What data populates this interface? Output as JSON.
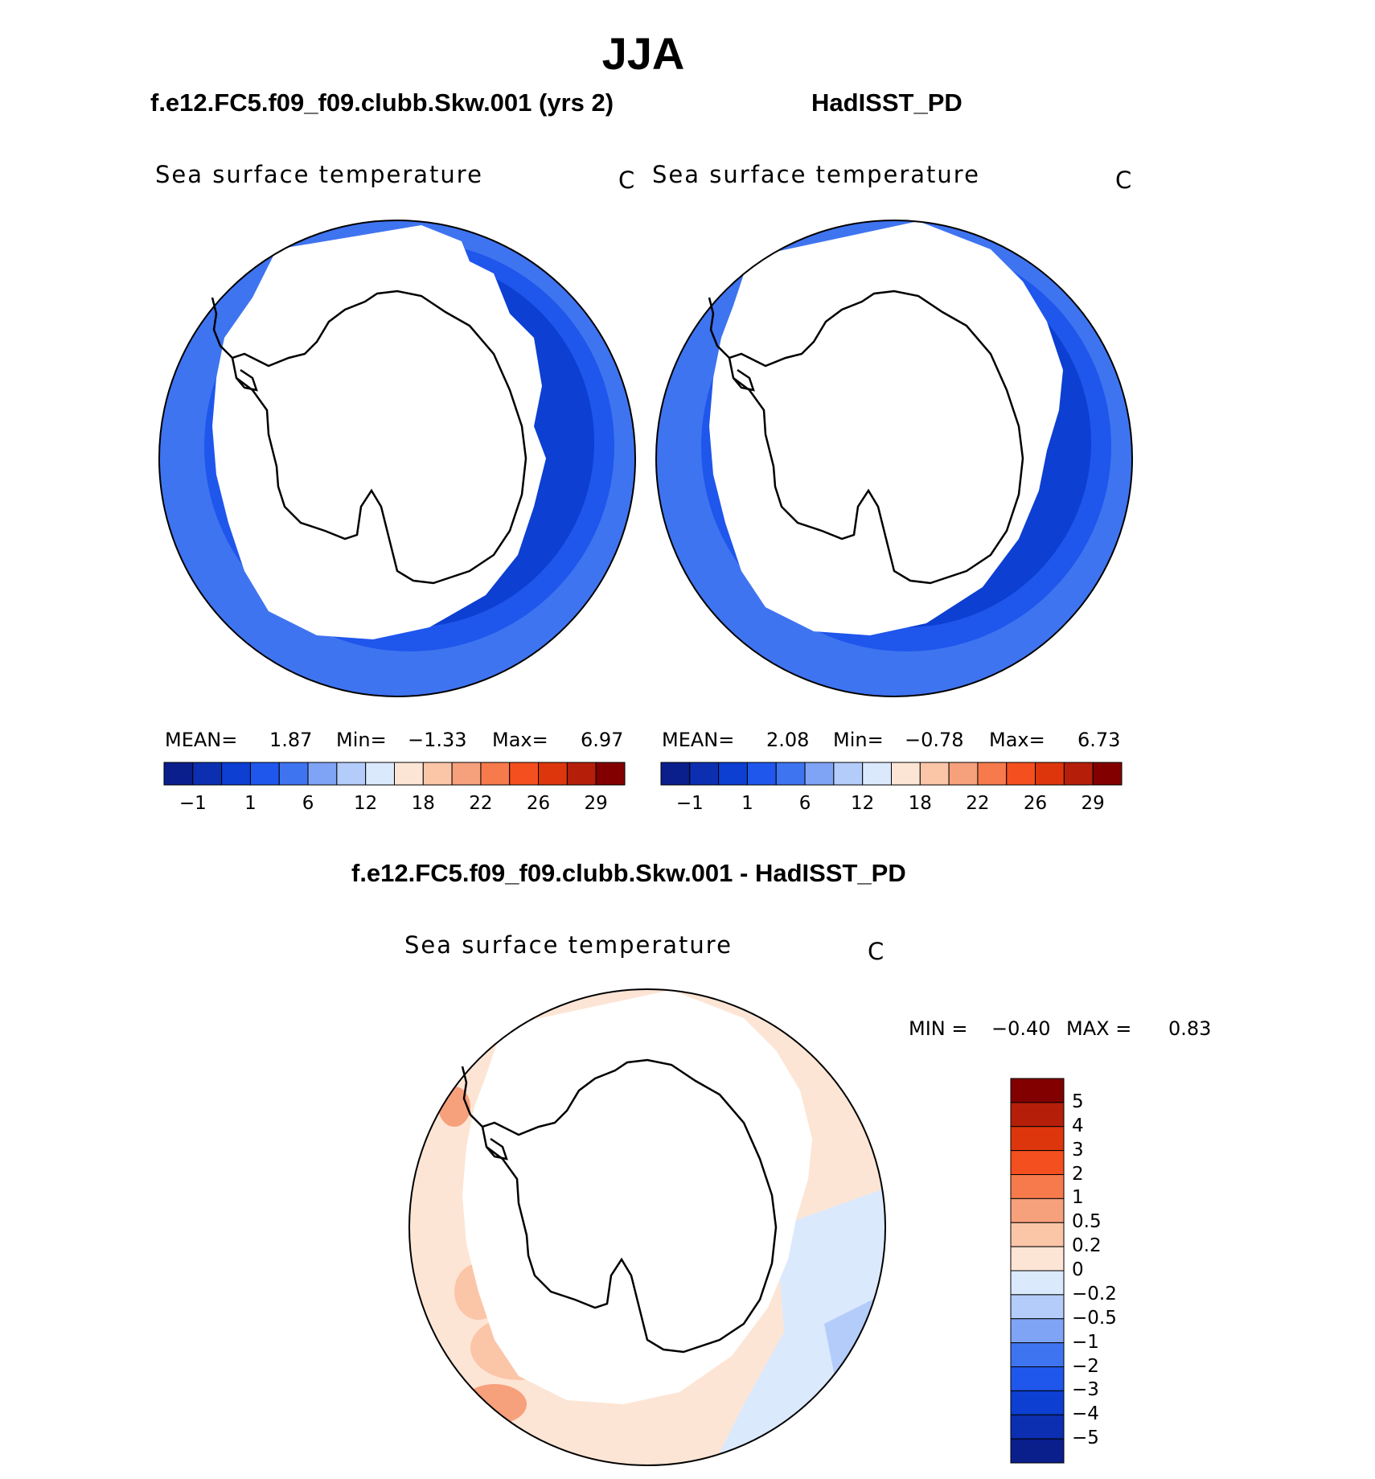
{
  "title": "JJA",
  "panels": [
    {
      "id": "model",
      "case_title": "f.e12.FC5.f09_f09.clubb.Skw.001 (yrs 2)",
      "variable": "Sea surface temperature",
      "units": "C",
      "stats": {
        "mean_label": "MEAN=",
        "mean": "1.87",
        "min_label": "Min=",
        "min": "−1.33",
        "max_label": "Max=",
        "max": "6.97"
      }
    },
    {
      "id": "obs",
      "case_title": "HadISST_PD",
      "variable": "Sea surface temperature",
      "units": "C",
      "stats": {
        "mean_label": "MEAN=",
        "mean": "2.08",
        "min_label": "Min=",
        "min": "−0.78",
        "max_label": "Max=",
        "max": "6.73"
      }
    }
  ],
  "abs_colorbar": {
    "colors": [
      "#0a1e8c",
      "#0b2fb0",
      "#0c3fd2",
      "#1f56ec",
      "#3f74f0",
      "#7fa4f5",
      "#b3ccfa",
      "#dbe9fc",
      "#fde5d5",
      "#fbc5a8",
      "#f7a07c",
      "#f67a4b",
      "#f44f1e",
      "#de360c",
      "#b51f0a",
      "#820000"
    ],
    "ticks": [
      "−1",
      "1",
      "6",
      "12",
      "18",
      "22",
      "26",
      "29"
    ]
  },
  "diff": {
    "title": "f.e12.FC5.f09_f09.clubb.Skw.001 - HadISST_PD",
    "variable": "Sea surface temperature",
    "units": "C",
    "stats": {
      "min_label": "MIN =",
      "min": "−0.40",
      "max_label": "MAX =",
      "max": "0.83"
    },
    "colorbar": {
      "colors_top_to_bottom": [
        "#820000",
        "#b51f0a",
        "#de360c",
        "#f44f1e",
        "#f67a4b",
        "#f7a07c",
        "#fbc5a8",
        "#fde5d5",
        "#dbe9fc",
        "#b3ccfa",
        "#7fa4f5",
        "#3f74f0",
        "#1f56ec",
        "#0c3fd2",
        "#0b2fb0",
        "#0a1e8c"
      ],
      "ticks": [
        "5",
        "4",
        "3",
        "2",
        "1",
        "0.5",
        "0.2",
        "0",
        "−0.2",
        "−0.5",
        "−1",
        "−2",
        "−3",
        "−4",
        "−5"
      ]
    }
  },
  "field_colors": {
    "sst_warm": "#3f74f0",
    "sst_mid": "#1f56ec",
    "sst_cold": "#0c3fd2",
    "diff_pos": "#fde5d5",
    "diff_pos2": "#fbc5a8",
    "diff_pos3": "#f7a07c",
    "diff_neg": "#dbe9fc",
    "diff_neg2": "#b3ccfa"
  }
}
